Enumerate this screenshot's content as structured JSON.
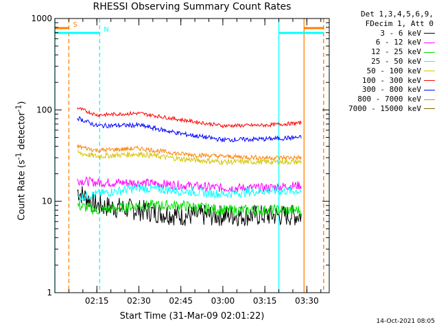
{
  "chart_data": {
    "type": "line",
    "title": "RHESSI Observing Summary Count Rates",
    "xlabel": "Start Time (31-Mar-09 02:01:22)",
    "ylabel_main": "Count Rate (s",
    "ylabel_sup": "-1",
    "ylabel_mid": " detector",
    "ylabel_sup2": "-1",
    "ylabel_end": ")",
    "yscale": "log",
    "ylim": [
      1,
      1000
    ],
    "xlim": [
      "02:00",
      "03:38"
    ],
    "x_tick_labels": [
      "02:15",
      "02:30",
      "02:45",
      "03:00",
      "03:15",
      "03:30"
    ],
    "y_tick_labels": [
      "1",
      "10",
      "100",
      "1000"
    ],
    "legend_header": [
      "Det 1,3,4,5,6,9,",
      "FDecim 1, Att 0"
    ],
    "legend_position": "right",
    "series": [
      {
        "name": "3 - 6 keV",
        "color": "#000000",
        "times": [
          "02:08",
          "02:15",
          "02:30",
          "02:45",
          "03:00",
          "03:15",
          "03:28"
        ],
        "values": [
          13,
          9,
          8,
          7,
          7,
          7,
          7
        ]
      },
      {
        "name": "6 - 12 keV",
        "color": "#ff00ff",
        "times": [
          "02:08",
          "02:15",
          "02:30",
          "02:45",
          "03:00",
          "03:15",
          "03:28"
        ],
        "values": [
          17,
          16,
          16,
          15,
          14,
          14,
          15
        ]
      },
      {
        "name": "12 - 25 keV",
        "color": "#00dd00",
        "times": [
          "02:08",
          "02:15",
          "02:30",
          "02:45",
          "03:00",
          "03:15",
          "03:28"
        ],
        "values": [
          9,
          8,
          9,
          9,
          8,
          8,
          8
        ]
      },
      {
        "name": "25 - 50 keV",
        "color": "#00ffff",
        "times": [
          "02:08",
          "02:15",
          "02:30",
          "02:45",
          "03:00",
          "03:15",
          "03:28"
        ],
        "values": [
          11,
          12,
          14,
          13,
          12,
          13,
          13
        ]
      },
      {
        "name": "50 - 100 keV",
        "color": "#d4c400",
        "times": [
          "02:08",
          "02:15",
          "02:30",
          "02:45",
          "03:00",
          "03:15",
          "03:28"
        ],
        "values": [
          34,
          31,
          33,
          29,
          27,
          27,
          27
        ]
      },
      {
        "name": "100 - 300 keV",
        "color": "#ff0000",
        "times": [
          "02:08",
          "02:15",
          "02:30",
          "02:45",
          "03:00",
          "03:15",
          "03:28"
        ],
        "values": [
          105,
          88,
          92,
          78,
          67,
          68,
          72
        ]
      },
      {
        "name": "300 - 800 keV",
        "color": "#0000ff",
        "times": [
          "02:08",
          "02:15",
          "02:30",
          "02:45",
          "03:00",
          "03:15",
          "03:28"
        ],
        "values": [
          82,
          67,
          68,
          55,
          47,
          48,
          50
        ]
      },
      {
        "name": "800 - 7000 keV",
        "color": "#ff8000",
        "times": [
          "02:08",
          "02:15",
          "02:30",
          "02:45",
          "03:00",
          "03:15",
          "03:28"
        ],
        "values": [
          40,
          36,
          38,
          33,
          31,
          30,
          30
        ]
      },
      {
        "name": "7000 - 15000 keV",
        "color": "#806000",
        "times": [],
        "values": []
      }
    ],
    "flags": [
      {
        "label": "S",
        "color": "#ff8000",
        "segments": [
          [
            "02:00",
            "02:05"
          ],
          [
            "03:29",
            "03:36"
          ]
        ]
      },
      {
        "label": "N",
        "color": "#00ffff",
        "segments": [
          [
            "02:00",
            "02:16"
          ],
          [
            "03:20",
            "03:36"
          ]
        ]
      }
    ],
    "vlines": [
      {
        "time": "02:00",
        "color": "#00ffff",
        "style": "solid"
      },
      {
        "time": "02:05",
        "color": "#ff8000",
        "style": "dashed"
      },
      {
        "time": "02:16",
        "color": "#00ffff",
        "style": "dashed"
      },
      {
        "time": "03:20",
        "color": "#00ffff",
        "style": "solid"
      },
      {
        "time": "03:29",
        "color": "#ff8000",
        "style": "solid"
      },
      {
        "time": "03:36",
        "color": "#00ffff",
        "style": "dashed"
      },
      {
        "time": "03:36",
        "color": "#ff8000",
        "style": "dashed"
      }
    ]
  },
  "footer": {
    "timestamp": "14-Oct-2021 08:05"
  }
}
